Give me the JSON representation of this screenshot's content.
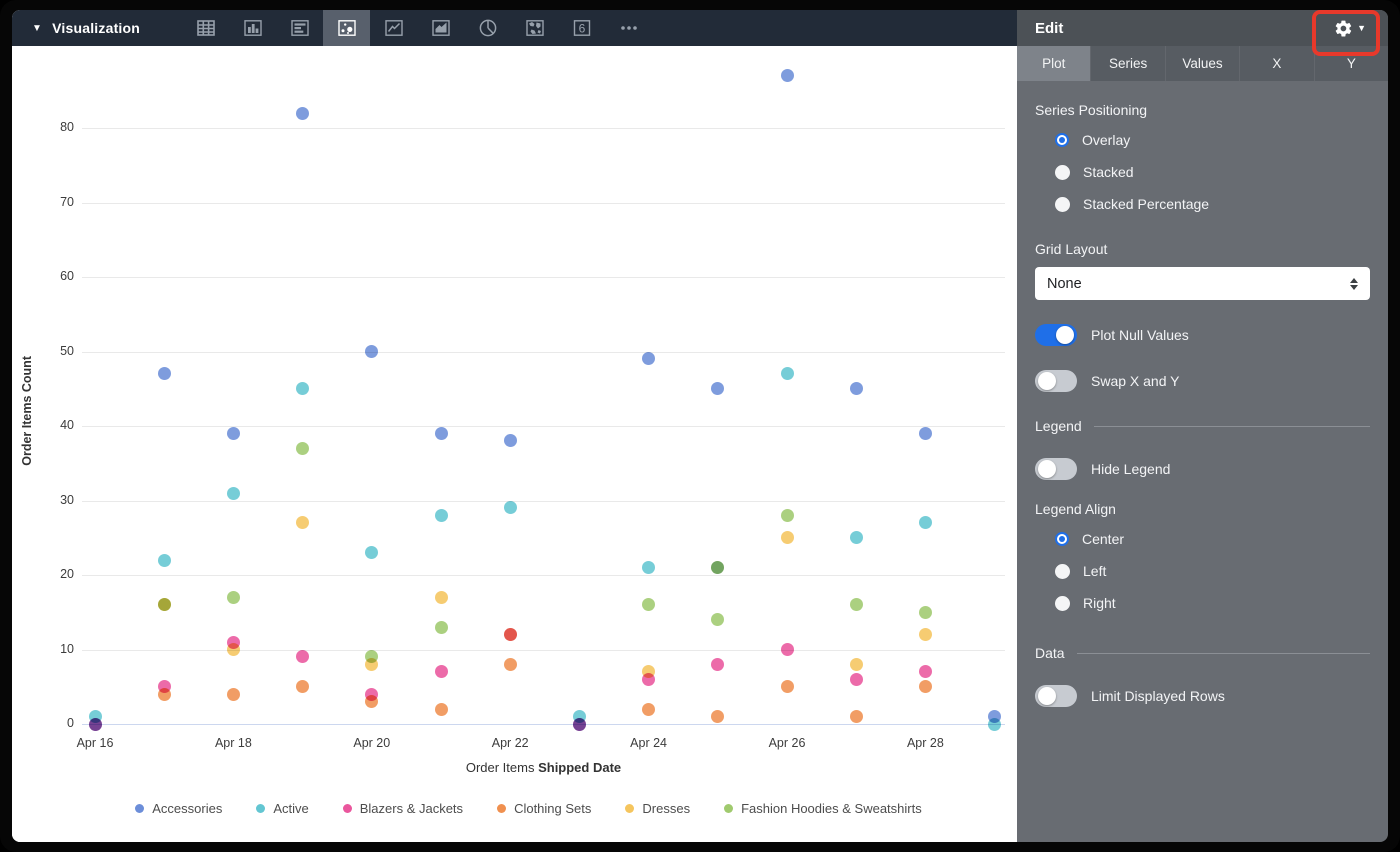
{
  "toolbar": {
    "label": "Visualization",
    "icons": [
      {
        "name": "table-icon",
        "selected": false
      },
      {
        "name": "column-chart-icon",
        "selected": false
      },
      {
        "name": "bar-chart-icon",
        "selected": false
      },
      {
        "name": "scatter-chart-icon",
        "selected": true
      },
      {
        "name": "line-chart-icon",
        "selected": false
      },
      {
        "name": "area-chart-icon",
        "selected": false
      },
      {
        "name": "pie-chart-icon",
        "selected": false
      },
      {
        "name": "map-chart-icon",
        "selected": false
      },
      {
        "name": "single-value-icon",
        "selected": false
      },
      {
        "name": "more-icon",
        "selected": false
      }
    ]
  },
  "panel": {
    "title": "Edit",
    "tabs": [
      {
        "label": "Plot",
        "selected": true
      },
      {
        "label": "Series",
        "selected": false
      },
      {
        "label": "Values",
        "selected": false
      },
      {
        "label": "X",
        "selected": false
      },
      {
        "label": "Y",
        "selected": false
      }
    ],
    "series_positioning": {
      "label": "Series Positioning",
      "options": [
        {
          "label": "Overlay",
          "selected": true
        },
        {
          "label": "Stacked",
          "selected": false
        },
        {
          "label": "Stacked Percentage",
          "selected": false
        }
      ]
    },
    "grid_layout": {
      "label": "Grid Layout",
      "value": "None"
    },
    "plot_null_values": {
      "label": "Plot Null Values",
      "on": true
    },
    "swap_x_y": {
      "label": "Swap X and Y",
      "on": false
    },
    "legend_section": {
      "label": "Legend"
    },
    "hide_legend": {
      "label": "Hide Legend",
      "on": false
    },
    "legend_align": {
      "label": "Legend Align",
      "options": [
        {
          "label": "Center",
          "selected": true
        },
        {
          "label": "Left",
          "selected": false
        },
        {
          "label": "Right",
          "selected": false
        }
      ]
    },
    "data_section": {
      "label": "Data"
    },
    "limit_rows": {
      "label": "Limit Displayed Rows",
      "on": false
    }
  },
  "chart_data": {
    "type": "scatter",
    "x": [
      "Apr 16",
      "Apr 17",
      "Apr 18",
      "Apr 19",
      "Apr 20",
      "Apr 21",
      "Apr 22",
      "Apr 23",
      "Apr 24",
      "Apr 25",
      "Apr 26",
      "Apr 27",
      "Apr 28",
      "Apr 29"
    ],
    "x_tick_labels": [
      "Apr 16",
      "Apr 18",
      "Apr 20",
      "Apr 22",
      "Apr 24",
      "Apr 26",
      "Apr 28"
    ],
    "y_ticks": [
      0,
      10,
      20,
      30,
      40,
      50,
      60,
      70,
      80
    ],
    "ylim": [
      0,
      88
    ],
    "grid": true,
    "legend_position": "bottom-center",
    "xlabel_normal": "Order Items ",
    "xlabel_bold": "Shipped Date",
    "ylabel": "Order Items Count",
    "series": [
      {
        "name": "Accessories",
        "color": "#6c8ed9",
        "values": [
          0,
          47,
          39,
          82,
          50,
          39,
          38,
          0,
          49,
          45,
          87,
          45,
          39,
          1
        ]
      },
      {
        "name": "Active",
        "color": "#63c6d2",
        "values": [
          1,
          22,
          31,
          45,
          23,
          28,
          29,
          1,
          21,
          21,
          47,
          25,
          27,
          0
        ]
      },
      {
        "name": "Blazers & Jackets",
        "color": "#ea569d",
        "values": [
          0,
          5,
          11,
          9,
          4,
          7,
          12,
          0,
          6,
          8,
          10,
          6,
          7,
          null
        ]
      },
      {
        "name": "Clothing Sets",
        "color": "#f0904f",
        "values": [
          null,
          4,
          4,
          5,
          3,
          2,
          8,
          null,
          2,
          1,
          5,
          1,
          5,
          null
        ]
      },
      {
        "name": "Dresses",
        "color": "#f5c55e",
        "values": [
          null,
          16,
          10,
          27,
          8,
          17,
          12,
          null,
          7,
          21,
          25,
          8,
          12,
          null
        ]
      },
      {
        "name": "Fashion Hoodies & Sweatshirts",
        "color": "#a0ca6e",
        "values": [
          null,
          16,
          17,
          37,
          9,
          13,
          null,
          null,
          16,
          14,
          28,
          16,
          15,
          null
        ]
      }
    ]
  },
  "colors": {
    "toolbar_bg": "#222b38",
    "panel_bg": "#686c72",
    "accent_blue": "#1f6fe8",
    "annotation_red": "#e8392b",
    "gridline": "#e9e9e9",
    "axis_line": "#ccd7ef"
  }
}
